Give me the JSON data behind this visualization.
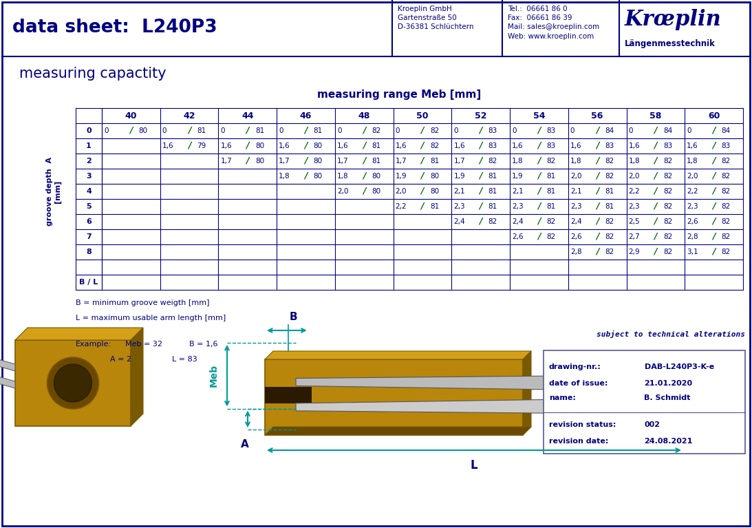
{
  "title": "data sheet:  L240P3",
  "header_company": "Kroeplin GmbH\nGartenstraße 50\nD-36381 Schlüchtern",
  "header_tel": "Tel.:  06661 86 0\nFax:  06661 86 39\nMail: sales@kroeplin.com\nWeb: www.kroeplin.com",
  "header_brand": "Krœplin",
  "header_brand2": "Längenmesstechnik",
  "section_title": "measuring capactity",
  "table_title": "measuring range Meb [mm]",
  "col_headers": [
    "40",
    "42",
    "44",
    "46",
    "48",
    "50",
    "52",
    "54",
    "56",
    "58",
    "60"
  ],
  "row_labels": [
    "0",
    "1",
    "2",
    "3",
    "4",
    "5",
    "6",
    "7",
    "8",
    "",
    "B / L"
  ],
  "table_data": [
    [
      "0 / 80",
      "0 / 81",
      "0 / 81",
      "0 / 81",
      "0 / 82",
      "0 / 82",
      "0 / 83",
      "0 / 83",
      "0 / 84",
      "0 / 84",
      "0 / 84"
    ],
    [
      "",
      "1,6 / 79",
      "1,6 / 80",
      "1,6 / 80",
      "1,6 / 81",
      "1,6 / 82",
      "1,6 / 83",
      "1,6 / 83",
      "1,6 / 83",
      "1,6 / 83",
      "1,6 / 83"
    ],
    [
      "",
      "",
      "1,7 / 80",
      "1,7 / 80",
      "1,7 / 81",
      "1,7 / 81",
      "1,7 / 82",
      "1,8 / 82",
      "1,8 / 82",
      "1,8 / 82",
      "1,8 / 82"
    ],
    [
      "",
      "",
      "",
      "1,8 / 80",
      "1,8 / 80",
      "1,9 / 80",
      "1,9 / 81",
      "1,9 / 81",
      "2,0 / 82",
      "2,0 / 82",
      "2,0 / 82"
    ],
    [
      "",
      "",
      "",
      "",
      "2,0 / 80",
      "2,0 / 80",
      "2,1 / 81",
      "2,1 / 81",
      "2,1 / 81",
      "2,2 / 82",
      "2,2 / 82"
    ],
    [
      "",
      "",
      "",
      "",
      "",
      "2,2 / 81",
      "2,3 / 81",
      "2,3 / 81",
      "2,3 / 81",
      "2,3 / 82",
      "2,3 / 82"
    ],
    [
      "",
      "",
      "",
      "",
      "",
      "",
      "2,4 / 82",
      "2,4 / 82",
      "2,4 / 82",
      "2,5 / 82",
      "2,6 / 82"
    ],
    [
      "",
      "",
      "",
      "",
      "",
      "",
      "",
      "2,6 / 82",
      "2,6 / 82",
      "2,7 / 82",
      "2,8 / 82"
    ],
    [
      "",
      "",
      "",
      "",
      "",
      "",
      "",
      "",
      "2,8 / 82",
      "2,9 / 82",
      "3,1 / 82"
    ]
  ],
  "note1": "B = minimum groove weigth [mm]",
  "note2": "L = maximum usable arm length [mm]",
  "example_label": "Example:",
  "example_meb": "Meb = 32",
  "example_b": "B = 1,6",
  "example_a": "A = 2",
  "example_l": "L = 83",
  "drawing_nr_label": "drawing-nr.:",
  "drawing_nr_val": "DAB-L240P3-K-e",
  "date_label": "date of issue:",
  "date_val": "21.01.2020",
  "name_label": "name:",
  "name_val": "B. Schmidt",
  "rev_status_label": "revision status:",
  "rev_status_val": "002",
  "rev_date_label": "revision date:",
  "rev_date_val": "24.08.2021",
  "subject_text": "subject to technical alterations",
  "blue": "#000080",
  "cyan": "#009999",
  "gold": "#B8860B",
  "dark_gold": "#7a5a00",
  "light_gold": "#D4A017",
  "silver": "#AAAAAA",
  "dark_silver": "#777777",
  "green": "#006600"
}
